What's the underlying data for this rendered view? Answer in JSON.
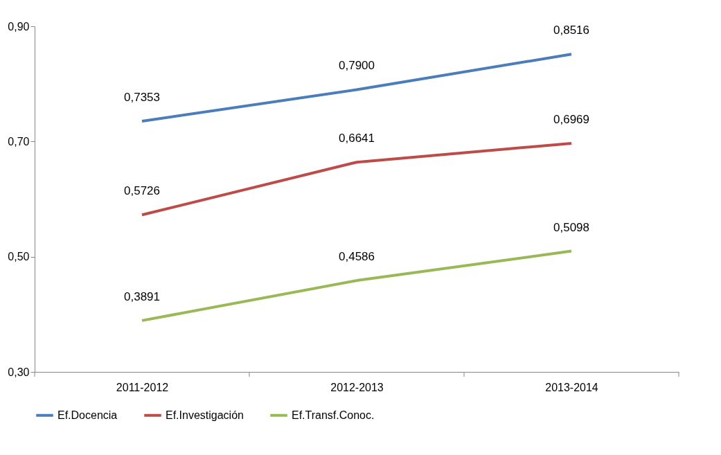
{
  "chart_data": {
    "type": "line",
    "categories": [
      "2011-2012",
      "2012-2013",
      "2013-2014"
    ],
    "series": [
      {
        "name": "Ef.Docencia",
        "color": "#4a7ebb",
        "values": [
          0.7353,
          0.79,
          0.8516
        ],
        "value_labels": [
          "0,7353",
          "0,7900",
          "0,8516"
        ]
      },
      {
        "name": "Ef.Investigación",
        "color": "#be4b48",
        "values": [
          0.5726,
          0.6641,
          0.6969
        ],
        "value_labels": [
          "0,5726",
          "0,6641",
          "0,6969"
        ]
      },
      {
        "name": "Ef.Transf.Conoc.",
        "color": "#98b954",
        "values": [
          0.3891,
          0.4586,
          0.5098
        ],
        "value_labels": [
          "0,3891",
          "0,4586",
          "0,5098"
        ]
      }
    ],
    "ylim": [
      0.3,
      0.9
    ],
    "yticks": [
      {
        "value": 0.3,
        "label": "0,30"
      },
      {
        "value": 0.5,
        "label": "0,50"
      },
      {
        "value": 0.7,
        "label": "0,70"
      },
      {
        "value": 0.9,
        "label": "0,90"
      }
    ],
    "grid": false,
    "legend": "bottom",
    "line_style": "solid"
  }
}
